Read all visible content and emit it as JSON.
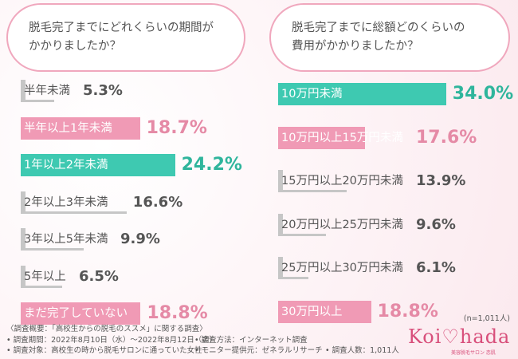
{
  "charts": [
    {
      "question_lines": [
        "脱毛完了までにどれくらいの期間が",
        "かかりましたか？"
      ],
      "chart_data": {
        "type": "bar",
        "orientation": "horizontal",
        "categories": [
          "半年未満",
          "半年以上1年未満",
          "1年以上2年未満",
          "2年以上3年未満",
          "3年以上5年未満",
          "5年以上",
          "まだ完了していない"
        ],
        "values": [
          5.3,
          18.7,
          24.2,
          16.6,
          9.9,
          6.5,
          18.8
        ],
        "value_text": [
          "5.3%",
          "18.7%",
          "24.2%",
          "16.6%",
          "9.9%",
          "6.5%",
          "18.8%"
        ],
        "highlight": [
          "none",
          "pink",
          "green",
          "none",
          "none",
          "none",
          "pink"
        ]
      }
    },
    {
      "question_lines": [
        "脱毛完了までに総額どのくらいの",
        "費用がかかりましたか？"
      ],
      "chart_data": {
        "type": "bar",
        "orientation": "horizontal",
        "categories": [
          "10万円未満",
          "10万円以上15万円未満",
          "15万円以上20万円未満",
          "20万円以上25万円未満",
          "25万円以上30万円未満",
          "30万円以上"
        ],
        "values": [
          34.0,
          17.6,
          13.9,
          9.6,
          6.1,
          18.8
        ],
        "value_text": [
          "34.0%",
          "17.6%",
          "13.9%",
          "9.6%",
          "6.1%",
          "18.8%"
        ],
        "highlight": [
          "green",
          "pink",
          "none",
          "none",
          "none",
          "pink"
        ]
      }
    }
  ],
  "colors": {
    "green": "#3ec9b1",
    "pink": "#f09ab5",
    "gray": "#c6c6c6",
    "text": "#555555",
    "pct_green": "#2fb59c",
    "pct_pink": "#e58aa6"
  },
  "sample_note": "(n=1,011人)",
  "footer": {
    "summary": "〈調査概要：「高校生からの脱毛のススメ」に関する調査〉",
    "period": "• 調査期間：2022年8月10日（水）～2022年8月12日（金）",
    "method": "• 調査方法：インターネット調査",
    "target": "• 調査対象：高校生の時から脱毛サロンに通っていた女性",
    "provider": "• モニター提供元：ゼネラルリサーチ",
    "count": "• 調査人数：1,011人"
  },
  "logo": {
    "wordmark": "Koi♡hada",
    "tagline": "美容脱毛サロン 恋肌"
  }
}
